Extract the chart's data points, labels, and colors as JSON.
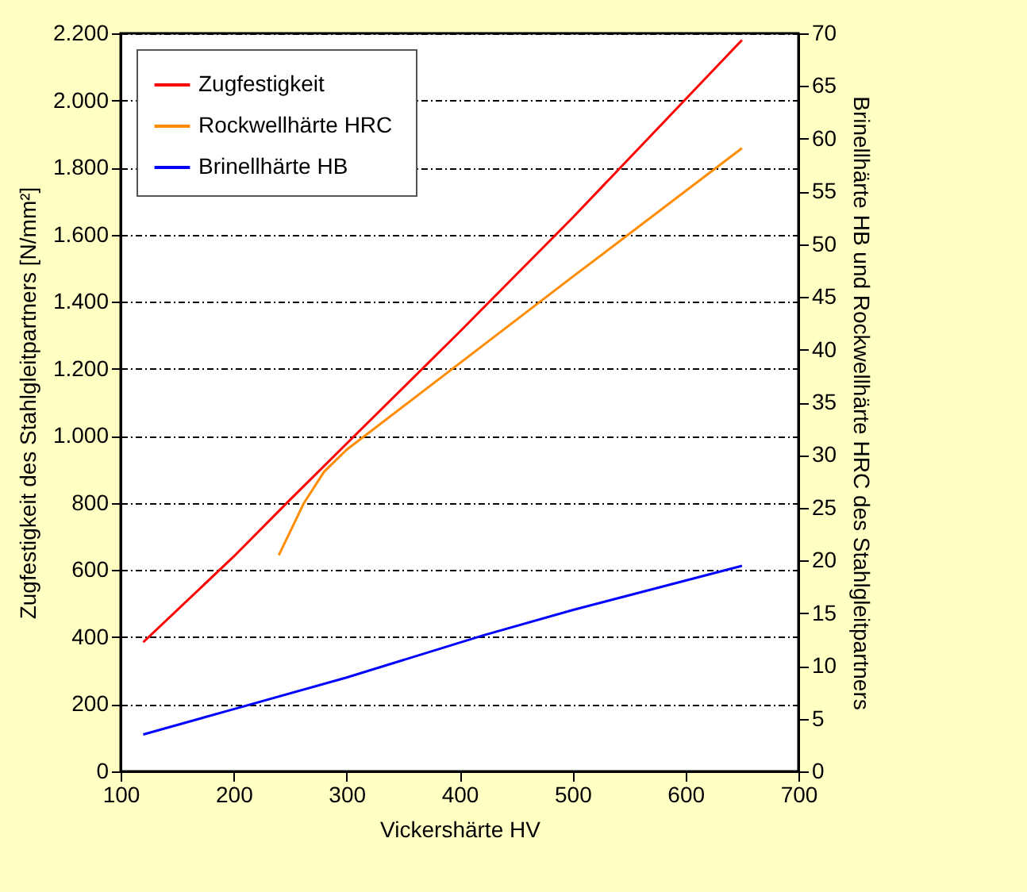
{
  "chart_data": {
    "type": "line",
    "xlabel": "Vickershärte HV",
    "ylabel": "Zugfestigkeit des Stahlgleitpartners [N/mm²]",
    "y2label": "Brinellhärte HB und Rockwellhärte  HRC des Stahlgleitpartners",
    "xlim": [
      100,
      700
    ],
    "xticks": [
      100,
      200,
      300,
      400,
      500,
      600,
      700
    ],
    "ylim": [
      0,
      2200
    ],
    "yticks": [
      0,
      200,
      400,
      600,
      800,
      {
        "value": 1000,
        "label": "1.000"
      },
      {
        "value": 1200,
        "label": "1.200"
      },
      {
        "value": 1400,
        "label": "1.400"
      },
      {
        "value": 1600,
        "label": "1.600"
      },
      {
        "value": 1800,
        "label": "1.800"
      },
      {
        "value": 2000,
        "label": "2.000"
      },
      {
        "value": 2200,
        "label": "2.200"
      }
    ],
    "y2lim": [
      0,
      70
    ],
    "y2ticks": [
      0,
      5,
      10,
      15,
      20,
      25,
      30,
      35,
      40,
      45,
      50,
      55,
      60,
      65,
      70
    ],
    "grid": "y",
    "legend": "top left",
    "marker": "none",
    "line_style": "solid",
    "series": [
      {
        "name": "Zugfestigkeit",
        "color": "#ff0000",
        "x": [
          120,
          200,
          250,
          307,
          400,
          500,
          650
        ],
        "values": [
          385,
          640,
          810,
          1000,
          1310,
          1650,
          2180
        ]
      },
      {
        "name": "Rockwellhärte  HRC",
        "color": "#ff8c00",
        "axis": "y2",
        "x": [
          240,
          262,
          280,
          300,
          400,
          500,
          650
        ],
        "values": [
          20.5,
          25.4,
          28.4,
          30.5,
          38.7,
          46.9,
          59.1
        ]
      },
      {
        "name": "Brinellhärte HB",
        "color": "#0000ff",
        "axis": "y2",
        "x": [
          120,
          200,
          300,
          421,
          500,
          650
        ],
        "values": [
          3.5,
          5.9,
          8.9,
          12.9,
          15.3,
          19.5
        ]
      }
    ]
  }
}
